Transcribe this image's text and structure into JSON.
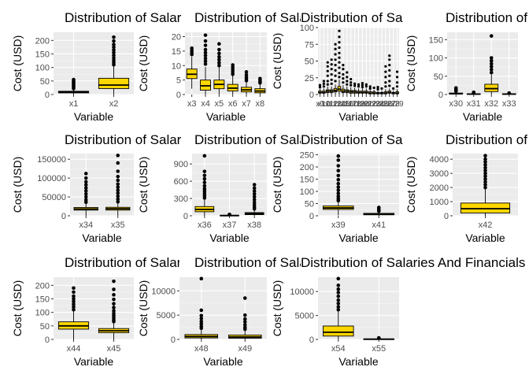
{
  "chart_data": [
    {
      "type": "box",
      "title": "Distribution of Salaries And Financials",
      "xlabel": "Variable",
      "ylabel": "Cost (USD)",
      "ylim": [
        0,
        230
      ],
      "yticks": [
        0,
        50,
        100,
        150,
        200
      ],
      "categories": [
        "x1",
        "x2"
      ],
      "boxes": [
        {
          "min": 0,
          "q1": 6,
          "median": 9,
          "q3": 12,
          "max": 19,
          "outliers": [
            22,
            26,
            30,
            34,
            38,
            42,
            46,
            50,
            55
          ]
        },
        {
          "min": 0,
          "q1": 22,
          "median": 35,
          "q3": 60,
          "max": 105,
          "outliers": [
            110,
            118,
            126,
            135,
            145,
            155,
            165,
            175,
            185,
            198,
            212
          ]
        }
      ]
    },
    {
      "type": "box",
      "title": "Distribution of Salaries And Financials",
      "xlabel": "Variable",
      "ylabel": "Cost (USD)",
      "ylim": [
        0,
        21.5
      ],
      "yticks": [
        0,
        5,
        10,
        15,
        20
      ],
      "categories": [
        "x3",
        "x4",
        "x5",
        "x6",
        "x7",
        "x8"
      ],
      "boxes": [
        {
          "min": 2,
          "q1": 5.5,
          "median": 7,
          "q3": 8.8,
          "max": 13,
          "outliers": [
            13.8,
            14.5,
            15.2,
            16
          ]
        },
        {
          "min": 0,
          "q1": 1.5,
          "median": 3,
          "q3": 5,
          "max": 9.5,
          "outliers": [
            10.5,
            11.5,
            12.5,
            13.5,
            14.5,
            15.5,
            17,
            18.5,
            20.5
          ]
        },
        {
          "min": 0,
          "q1": 2,
          "median": 3.5,
          "q3": 5,
          "max": 9.5,
          "outliers": [
            10,
            11,
            12,
            13,
            14.2,
            15.5,
            17.5
          ]
        },
        {
          "min": 0,
          "q1": 1.2,
          "median": 2.2,
          "q3": 3.5,
          "max": 6.5,
          "outliers": [
            7,
            7.8,
            8.6,
            9.4,
            10.2
          ]
        },
        {
          "min": 0,
          "q1": 0.9,
          "median": 1.6,
          "q3": 2.5,
          "max": 4.3,
          "outliers": [
            4.8,
            5.4,
            6,
            6.8,
            7.8
          ]
        },
        {
          "min": 0,
          "q1": 0.6,
          "median": 1.2,
          "q3": 2,
          "max": 3.5,
          "outliers": [
            4,
            4.5,
            5,
            5.5
          ]
        }
      ]
    },
    {
      "type": "box",
      "title": "Distribution of Salaries And Financials",
      "xlabel": "Variable",
      "ylabel": "Cost (USD)",
      "ylim": [
        0,
        100
      ],
      "yticks": [
        0,
        25,
        50,
        75,
        100
      ],
      "categories": [
        "x9",
        "x10",
        "x11",
        "x12",
        "x13",
        "x14",
        "x15",
        "x16",
        "x17",
        "x18",
        "x19",
        "x20",
        "x21",
        "x22",
        "x23",
        "x24",
        "x25",
        "x26",
        "x27",
        "x28",
        "x29"
      ],
      "boxes": [
        {
          "min": 0,
          "q1": 2,
          "median": 3,
          "q3": 5,
          "max": 9,
          "outliers": [
            11,
            14
          ]
        },
        {
          "min": 0,
          "q1": 2,
          "median": 3,
          "q3": 5,
          "max": 9,
          "outliers": [
            12,
            16,
            20
          ]
        },
        {
          "min": 0,
          "q1": 3,
          "median": 5,
          "q3": 7,
          "max": 12,
          "outliers": [
            15,
            20,
            28,
            35,
            42,
            48
          ]
        },
        {
          "min": 0,
          "q1": 3,
          "median": 5,
          "q3": 7,
          "max": 12,
          "outliers": [
            16,
            22,
            30,
            38,
            45,
            52
          ]
        },
        {
          "min": 0,
          "q1": 4,
          "median": 6,
          "q3": 9,
          "max": 15,
          "outliers": [
            20,
            28,
            36,
            44,
            52,
            60,
            68,
            75
          ]
        },
        {
          "min": 0,
          "q1": 5,
          "median": 8,
          "q3": 12,
          "max": 22,
          "outliers": [
            26,
            32,
            40,
            48,
            55,
            62,
            70,
            78,
            86,
            95
          ]
        },
        {
          "min": 0,
          "q1": 3,
          "median": 5,
          "q3": 8,
          "max": 14,
          "outliers": [
            18,
            24,
            30,
            38,
            44
          ]
        },
        {
          "min": 0,
          "q1": 3,
          "median": 5,
          "q3": 7,
          "max": 12,
          "outliers": [
            15,
            20,
            26,
            33
          ]
        },
        {
          "min": 0,
          "q1": 2,
          "median": 4,
          "q3": 6,
          "max": 11,
          "outliers": [
            14,
            18,
            23
          ]
        },
        {
          "min": 0,
          "q1": 2,
          "median": 4,
          "q3": 6,
          "max": 10,
          "outliers": [
            13,
            16
          ]
        },
        {
          "min": 0,
          "q1": 2,
          "median": 3,
          "q3": 5,
          "max": 9,
          "outliers": [
            12,
            15
          ]
        },
        {
          "min": 0,
          "q1": 2,
          "median": 3,
          "q3": 5,
          "max": 9,
          "outliers": [
            11,
            14,
            17
          ]
        },
        {
          "min": 0,
          "q1": 2,
          "median": 3,
          "q3": 5,
          "max": 9,
          "outliers": [
            12,
            15
          ]
        },
        {
          "min": 0,
          "q1": 1,
          "median": 2,
          "q3": 4,
          "max": 7,
          "outliers": [
            9,
            12
          ]
        },
        {
          "min": 0,
          "q1": 1,
          "median": 2,
          "q3": 4,
          "max": 7,
          "outliers": [
            10
          ]
        },
        {
          "min": 0,
          "q1": 1,
          "median": 2,
          "q3": 3,
          "max": 6,
          "outliers": [
            8,
            11
          ]
        },
        {
          "min": 0,
          "q1": 1,
          "median": 2,
          "q3": 3,
          "max": 6,
          "outliers": [
            9
          ]
        },
        {
          "min": 0,
          "q1": 1,
          "median": 2,
          "q3": 4,
          "max": 8,
          "outliers": [
            12,
            18,
            26,
            34,
            42
          ]
        },
        {
          "min": 0,
          "q1": 2,
          "median": 3,
          "q3": 5,
          "max": 9,
          "outliers": [
            13,
            20,
            28,
            36,
            44,
            52,
            58
          ]
        },
        {
          "min": 0,
          "q1": 1,
          "median": 2,
          "q3": 3,
          "max": 6,
          "outliers": [
            9
          ]
        },
        {
          "min": 0,
          "q1": 1,
          "median": 2,
          "q3": 4,
          "max": 8,
          "outliers": [
            12,
            18,
            26,
            34
          ]
        }
      ]
    },
    {
      "type": "box",
      "title": "Distribution of Salaries And Financials",
      "xlabel": "Variable",
      "ylabel": "Cost (USD)",
      "ylim": [
        0,
        170
      ],
      "yticks": [
        0,
        50,
        100,
        150
      ],
      "categories": [
        "x30",
        "x31",
        "x32",
        "x33"
      ],
      "boxes": [
        {
          "min": 0,
          "q1": 1,
          "median": 2,
          "q3": 4,
          "max": 7,
          "outliers": [
            9,
            12,
            15,
            18
          ]
        },
        {
          "min": 0,
          "q1": 0.5,
          "median": 1,
          "q3": 2,
          "max": 4,
          "outliers": [
            5,
            6
          ]
        },
        {
          "min": 0,
          "q1": 8,
          "median": 16,
          "q3": 28,
          "max": 55,
          "outliers": [
            60,
            68,
            76,
            84,
            92,
            100,
            160
          ]
        },
        {
          "min": 0,
          "q1": 0.5,
          "median": 1,
          "q3": 2,
          "max": 3,
          "outliers": [
            4
          ]
        }
      ]
    },
    {
      "type": "box",
      "title": "Distribution of Salaries And Financials",
      "xlabel": "Variable",
      "ylabel": "Cost (USD)",
      "ylim": [
        0,
        165000
      ],
      "yticks": [
        0,
        50000,
        100000,
        150000
      ],
      "categories": [
        "x34",
        "x35"
      ],
      "boxes": [
        {
          "min": 0,
          "q1": 15000,
          "median": 18000,
          "q3": 22000,
          "max": 32000,
          "outliers": [
            36000,
            42000,
            50000,
            58000,
            66000,
            74000,
            82000,
            90000,
            100000,
            112000
          ]
        },
        {
          "min": 0,
          "q1": 15000,
          "median": 18500,
          "q3": 22500,
          "max": 33000,
          "outliers": [
            37000,
            44000,
            52000,
            60000,
            68000,
            76000,
            84000,
            94000,
            104000,
            118000,
            140000,
            160000
          ]
        }
      ]
    },
    {
      "type": "box",
      "title": "Distribution of Salaries And Financials",
      "xlabel": "Variable",
      "ylabel": "Cost (USD)",
      "ylim": [
        0,
        1080
      ],
      "yticks": [
        0,
        300,
        600,
        900
      ],
      "categories": [
        "x36",
        "x37",
        "x38"
      ],
      "boxes": [
        {
          "min": 0,
          "q1": 70,
          "median": 110,
          "q3": 160,
          "max": 290,
          "outliers": [
            310,
            350,
            390,
            430,
            470,
            520,
            580,
            640,
            700,
            770,
            1040
          ]
        },
        {
          "min": 0,
          "q1": 2,
          "median": 4,
          "q3": 8,
          "max": 14,
          "outliers": [
            18,
            24
          ]
        },
        {
          "min": 0,
          "q1": 20,
          "median": 35,
          "q3": 55,
          "max": 100,
          "outliers": [
            120,
            150,
            190,
            230,
            280,
            330,
            380,
            430,
            480,
            540
          ]
        }
      ]
    },
    {
      "type": "box",
      "title": "Distribution of Salaries And Financials",
      "xlabel": "Variable",
      "ylabel": "Cost (USD)",
      "ylim": [
        0,
        255
      ],
      "yticks": [
        0,
        50,
        100,
        150,
        200,
        250
      ],
      "categories": [
        "x39",
        "x41"
      ],
      "boxes": [
        {
          "min": 2,
          "q1": 26,
          "median": 32,
          "q3": 40,
          "max": 58,
          "outliers": [
            62,
            70,
            80,
            92,
            105,
            118,
            132,
            148,
            165,
            185,
            205,
            228,
            245
          ]
        },
        {
          "min": 0,
          "q1": 4,
          "median": 6,
          "q3": 10,
          "max": 16,
          "outliers": [
            19,
            23,
            28,
            34
          ]
        }
      ]
    },
    {
      "type": "box",
      "title": "Distribution of Salaries And Financials",
      "xlabel": "Variable",
      "ylabel": "Cost (USD)",
      "ylim": [
        0,
        4400
      ],
      "yticks": [
        0,
        1000,
        2000,
        3000,
        4000
      ],
      "categories": [
        "x42"
      ],
      "boxes": [
        {
          "min": 0,
          "q1": 200,
          "median": 500,
          "q3": 900,
          "max": 1900,
          "outliers": [
            2000,
            2200,
            2400,
            2600,
            2800,
            3000,
            3200,
            3400,
            3600,
            3800,
            4000,
            4250
          ]
        }
      ]
    },
    {
      "type": "box",
      "title": "Distribution of Salaries And Financials",
      "xlabel": "Variable",
      "ylabel": "Cost (USD)",
      "ylim": [
        0,
        230
      ],
      "yticks": [
        0,
        50,
        100,
        150,
        200
      ],
      "categories": [
        "x44",
        "x45"
      ],
      "boxes": [
        {
          "min": 0,
          "q1": 38,
          "median": 50,
          "q3": 65,
          "max": 105,
          "outliers": [
            110,
            120,
            130,
            140,
            150,
            160,
            175,
            190
          ]
        },
        {
          "min": 0,
          "q1": 25,
          "median": 32,
          "q3": 40,
          "max": 62,
          "outliers": [
            66,
            72,
            80,
            88,
            96,
            106,
            118,
            132,
            148,
            165,
            185,
            215
          ]
        }
      ]
    },
    {
      "type": "box",
      "title": "Distribution of Salaries And Financials",
      "xlabel": "Variable",
      "ylabel": "Cost (USD)",
      "ylim": [
        0,
        12800
      ],
      "yticks": [
        0,
        5000,
        10000
      ],
      "categories": [
        "x48",
        "x49"
      ],
      "boxes": [
        {
          "min": 0,
          "q1": 300,
          "median": 600,
          "q3": 1000,
          "max": 2000,
          "outliers": [
            2300,
            2700,
            3200,
            3700,
            4300,
            4900,
            6000,
            12500
          ]
        },
        {
          "min": 0,
          "q1": 250,
          "median": 500,
          "q3": 900,
          "max": 1800,
          "outliers": [
            2100,
            2500,
            3000,
            3600,
            4200,
            5000,
            8500
          ]
        }
      ]
    },
    {
      "type": "box",
      "title": "Distribution of Salaries And Financials",
      "xlabel": "Variable",
      "ylabel": "Cost (USD)",
      "ylim": [
        0,
        13000
      ],
      "yticks": [
        0,
        5000,
        10000
      ],
      "categories": [
        "x54",
        "x55"
      ],
      "boxes": [
        {
          "min": 0,
          "q1": 700,
          "median": 1500,
          "q3": 2800,
          "max": 5800,
          "outliers": [
            6200,
            6800,
            7500,
            8200,
            9000,
            9800,
            10500,
            11300,
            12700
          ]
        },
        {
          "min": 0,
          "q1": 20,
          "median": 50,
          "q3": 100,
          "max": 200,
          "outliers": [
            260,
            330
          ]
        }
      ]
    }
  ],
  "colors": {
    "box_fill": "#FFD700",
    "panel_bg": "#EBEBEB",
    "grid_major": "#FFFFFF",
    "grid_minor": "#F5F5F5",
    "tick_text": "#4D4D4D",
    "outline": "#000000"
  }
}
